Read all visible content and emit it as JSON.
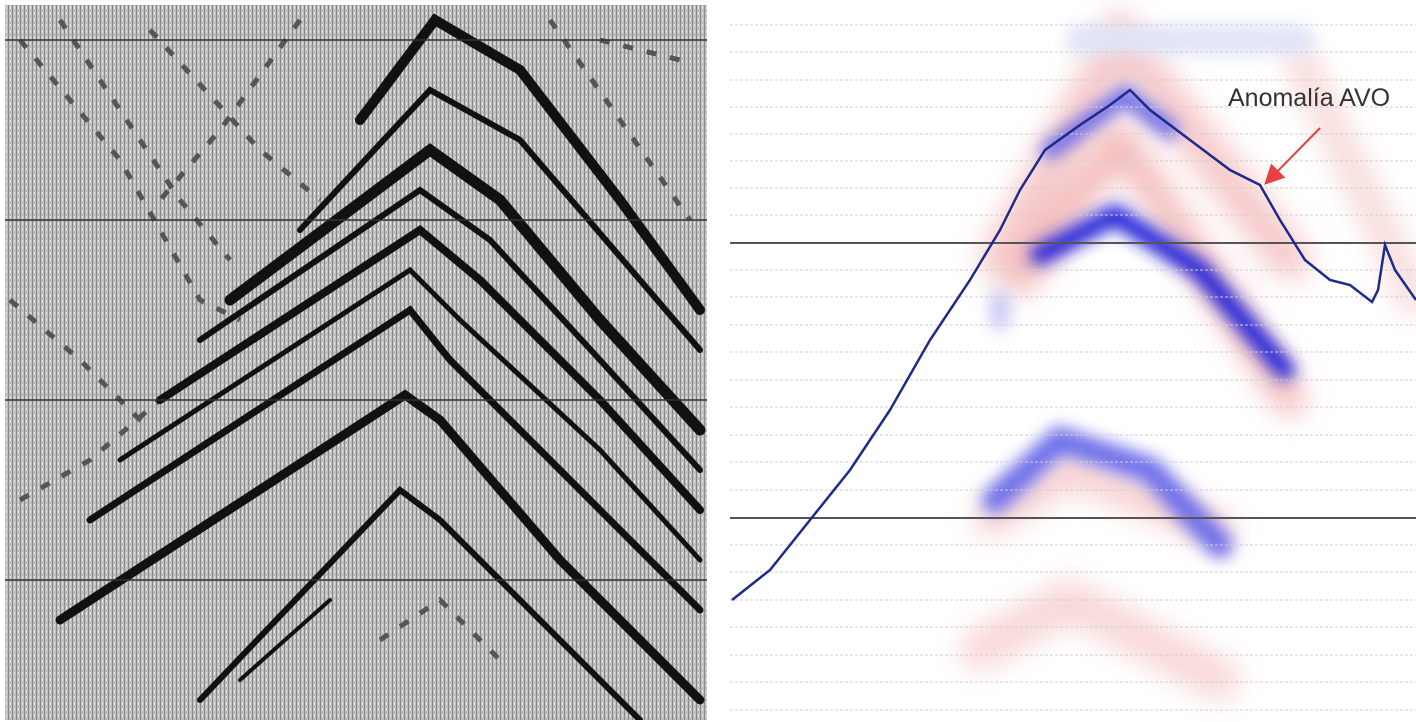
{
  "annotation": "Anomalía AVO"
}
